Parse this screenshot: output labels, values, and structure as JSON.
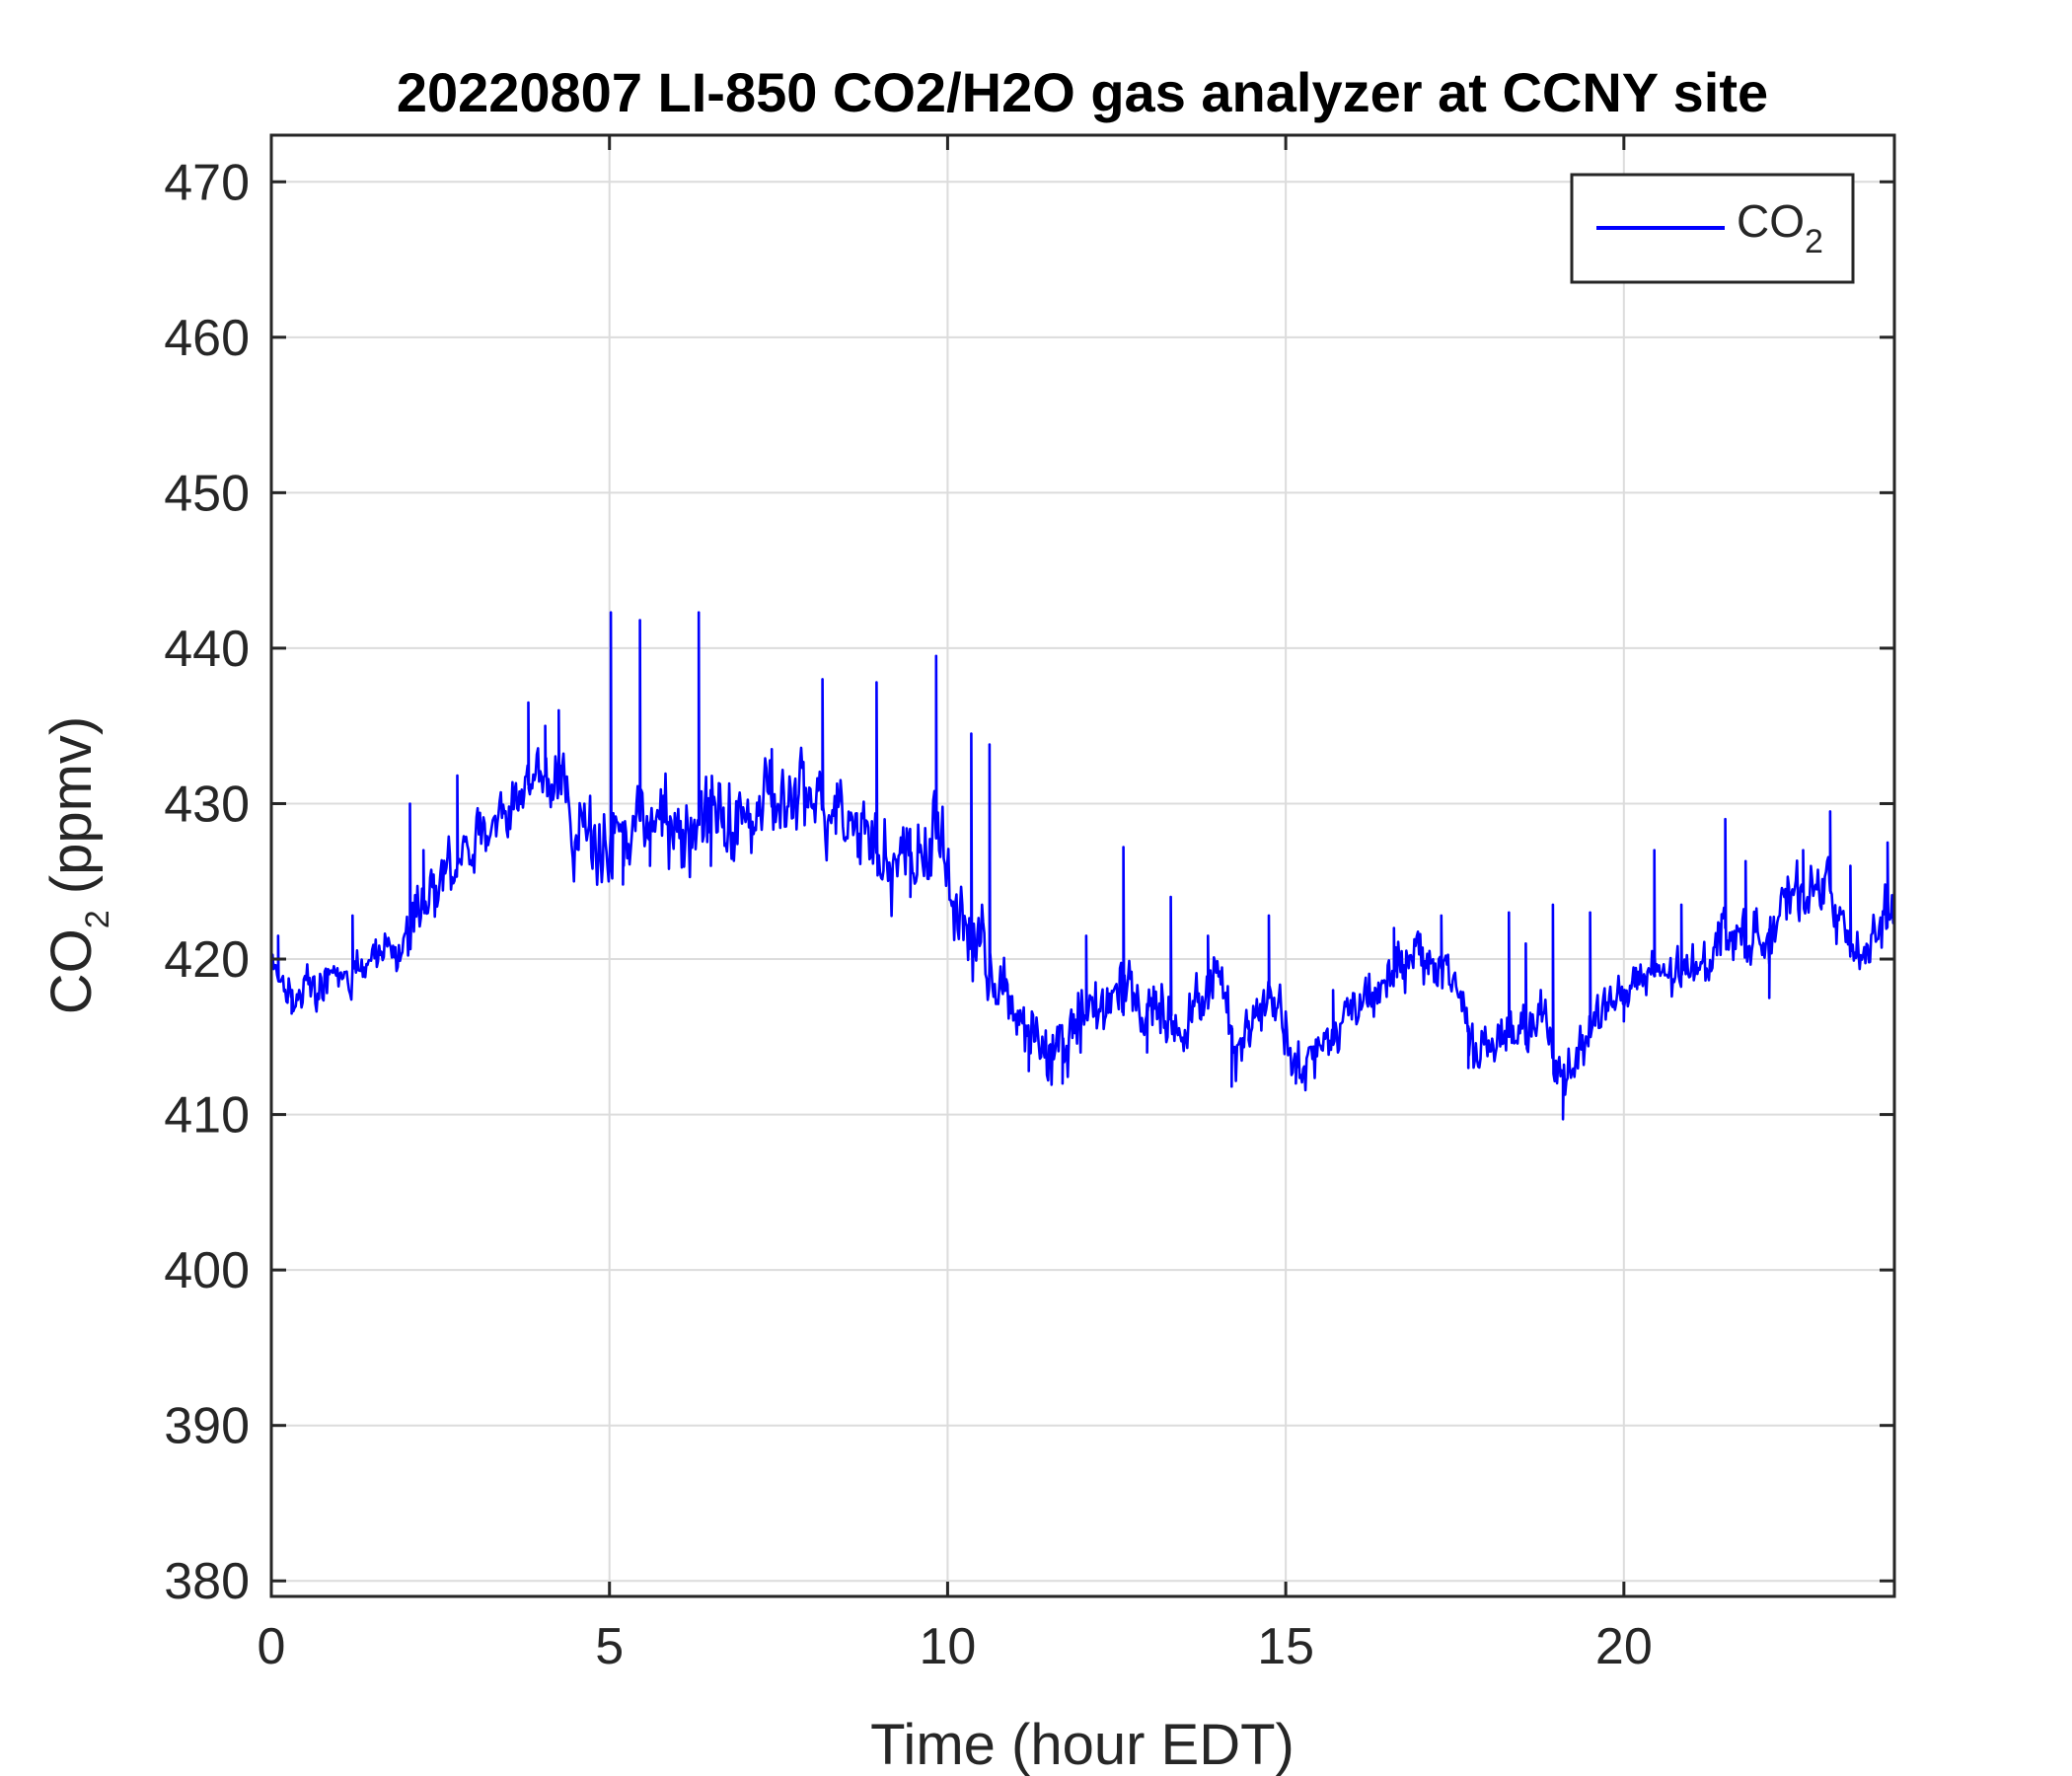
{
  "chart_data": {
    "type": "line",
    "title": "20220807 LI-850 CO2/H2O gas analyzer at CCNY site",
    "xlabel": "Time (hour EDT)",
    "ylabel_main": "CO",
    "ylabel_sub": "2",
    "ylabel_tail": " (ppmv)",
    "xlim": [
      0,
      24
    ],
    "ylim": [
      379,
      473
    ],
    "xticks": [
      0,
      5,
      10,
      15,
      20
    ],
    "yticks": [
      380,
      390,
      400,
      410,
      420,
      430,
      440,
      450,
      460,
      470
    ],
    "grid": true,
    "legend_position": "top-right",
    "series": [
      {
        "name_main": "CO",
        "name_sub": "2",
        "color": "#0000ff",
        "anchors": [
          [
            0.0,
            420.0
          ],
          [
            0.15,
            418.0
          ],
          [
            0.5,
            418.0
          ],
          [
            1.0,
            419.0
          ],
          [
            1.5,
            420.0
          ],
          [
            1.9,
            421.0
          ],
          [
            2.3,
            424.0
          ],
          [
            2.7,
            426.0
          ],
          [
            3.0,
            428.0
          ],
          [
            3.5,
            430.0
          ],
          [
            4.0,
            432.0
          ],
          [
            4.3,
            431.0
          ],
          [
            4.5,
            428.0
          ],
          [
            5.0,
            428.0
          ],
          [
            5.5,
            429.0
          ],
          [
            6.0,
            428.0
          ],
          [
            6.5,
            429.0
          ],
          [
            7.0,
            429.0
          ],
          [
            7.5,
            430.0
          ],
          [
            8.0,
            430.0
          ],
          [
            8.5,
            430.0
          ],
          [
            8.9,
            428.0
          ],
          [
            9.2,
            426.0
          ],
          [
            9.6,
            427.0
          ],
          [
            9.9,
            428.0
          ],
          [
            10.1,
            423.0
          ],
          [
            10.6,
            420.0
          ],
          [
            11.0,
            416.0
          ],
          [
            11.5,
            414.0
          ],
          [
            12.0,
            416.0
          ],
          [
            12.5,
            418.0
          ],
          [
            13.0,
            417.0
          ],
          [
            13.5,
            416.0
          ],
          [
            14.0,
            419.0
          ],
          [
            14.3,
            414.0
          ],
          [
            14.6,
            417.0
          ],
          [
            14.9,
            418.0
          ],
          [
            15.1,
            413.0
          ],
          [
            15.5,
            414.0
          ],
          [
            16.0,
            417.0
          ],
          [
            16.5,
            419.0
          ],
          [
            17.0,
            420.0
          ],
          [
            17.5,
            419.0
          ],
          [
            17.8,
            414.0
          ],
          [
            18.3,
            415.0
          ],
          [
            18.8,
            416.0
          ],
          [
            19.1,
            412.0
          ],
          [
            19.5,
            416.0
          ],
          [
            20.0,
            418.0
          ],
          [
            20.5,
            419.0
          ],
          [
            21.0,
            419.0
          ],
          [
            21.5,
            422.0
          ],
          [
            22.0,
            421.0
          ],
          [
            22.5,
            424.0
          ],
          [
            23.0,
            425.0
          ],
          [
            23.4,
            420.0
          ],
          [
            23.6,
            420.0
          ],
          [
            23.8,
            423.0
          ],
          [
            24.0,
            423.0
          ]
        ],
        "spikes": [
          [
            0.1,
            421.5
          ],
          [
            0.3,
            416.5
          ],
          [
            1.2,
            422.8
          ],
          [
            2.05,
            430.0
          ],
          [
            2.25,
            427.0
          ],
          [
            2.75,
            431.8
          ],
          [
            3.8,
            436.5
          ],
          [
            4.05,
            435.0
          ],
          [
            4.25,
            436.0
          ],
          [
            5.02,
            442.3
          ],
          [
            5.2,
            424.8
          ],
          [
            5.45,
            441.8
          ],
          [
            5.6,
            426.0
          ],
          [
            6.32,
            442.3
          ],
          [
            6.5,
            426.0
          ],
          [
            7.4,
            433.5
          ],
          [
            8.15,
            438.0
          ],
          [
            8.95,
            437.8
          ],
          [
            9.45,
            424.0
          ],
          [
            9.83,
            439.5
          ],
          [
            10.35,
            434.5
          ],
          [
            10.62,
            433.8
          ],
          [
            11.2,
            412.8
          ],
          [
            11.7,
            412.0
          ],
          [
            12.05,
            421.5
          ],
          [
            12.6,
            427.2
          ],
          [
            12.95,
            414.0
          ],
          [
            13.3,
            424.0
          ],
          [
            13.85,
            421.5
          ],
          [
            14.2,
            411.8
          ],
          [
            14.45,
            416.0
          ],
          [
            14.75,
            422.8
          ],
          [
            15.15,
            412.0
          ],
          [
            15.7,
            418.0
          ],
          [
            16.6,
            422.0
          ],
          [
            17.3,
            422.8
          ],
          [
            17.7,
            413.0
          ],
          [
            18.3,
            423.0
          ],
          [
            18.55,
            421.0
          ],
          [
            18.95,
            423.5
          ],
          [
            19.1,
            409.7
          ],
          [
            19.5,
            423.0
          ],
          [
            20.0,
            416.0
          ],
          [
            20.45,
            427.0
          ],
          [
            20.85,
            423.5
          ],
          [
            21.5,
            429.0
          ],
          [
            21.8,
            426.3
          ],
          [
            22.15,
            417.5
          ],
          [
            22.65,
            427.0
          ],
          [
            23.05,
            429.5
          ],
          [
            23.35,
            426.0
          ],
          [
            23.9,
            427.5
          ]
        ]
      }
    ]
  }
}
